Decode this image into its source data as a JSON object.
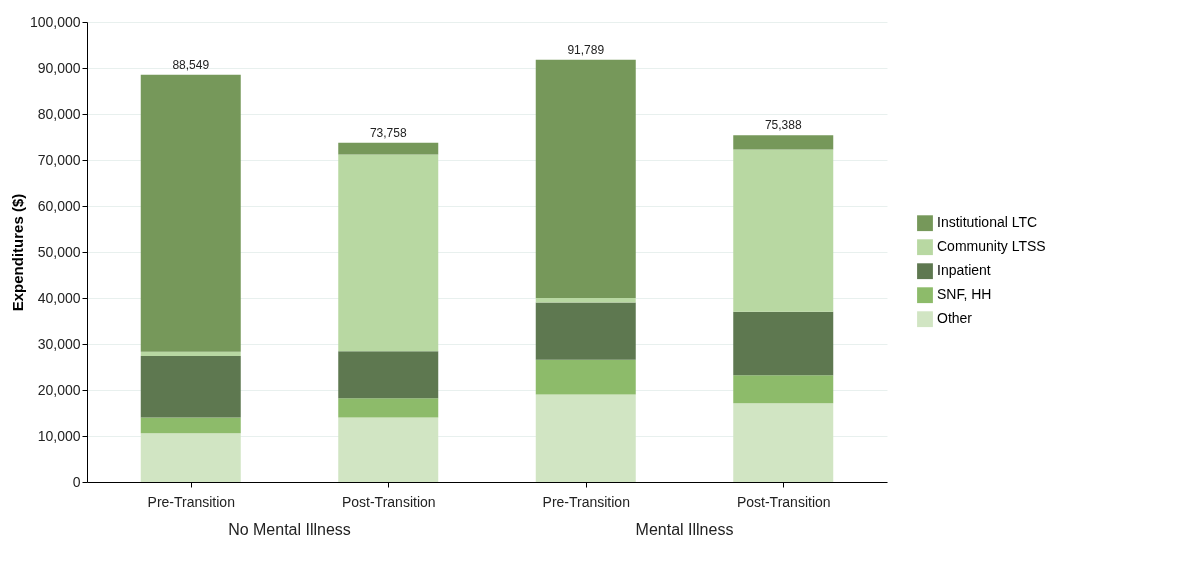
{
  "chart_data": {
    "type": "bar",
    "stacked": true,
    "ylabel": "Expenditures ($)",
    "categories": [
      "Pre-Transition",
      "Post-Transition",
      "Pre-Transition",
      "Post-Transition"
    ],
    "series": [
      {
        "name": "Other",
        "color": "#d1e5c3",
        "values": [
          10600,
          14000,
          19000,
          17100
        ]
      },
      {
        "name": "SNF, HH",
        "color": "#8dbb6a",
        "values": [
          3400,
          4200,
          7600,
          6100
        ]
      },
      {
        "name": "Inpatient",
        "color": "#5e7850",
        "values": [
          13400,
          10200,
          12400,
          13800
        ]
      },
      {
        "name": "Community LTSS",
        "color": "#b8d8a2",
        "values": [
          900,
          42800,
          1000,
          35300
        ]
      },
      {
        "name": "Institutional LTC",
        "color": "#76985a",
        "values": [
          60249,
          2558,
          51789,
          3088
        ]
      }
    ],
    "totals": [
      "88,549",
      "73,758",
      "91,789",
      "75,388"
    ],
    "annotations": [
      "No Mental Illness",
      "Mental Illness"
    ],
    "ylim": [
      0,
      100000
    ],
    "yticks": [
      0,
      {
        "value": 10000,
        "label": "10,000"
      },
      {
        "value": 20000,
        "label": "20,000"
      },
      {
        "value": 30000,
        "label": "30,000"
      },
      {
        "value": 40000,
        "label": "40,000"
      },
      {
        "value": 50000,
        "label": "50,000"
      },
      {
        "value": 60000,
        "label": "60,000"
      },
      {
        "value": 70000,
        "label": "70,000"
      },
      {
        "value": 80000,
        "label": "80,000"
      },
      {
        "value": 90000,
        "label": "90,000"
      },
      {
        "value": 100000,
        "label": "100,000"
      }
    ],
    "grid": "y",
    "legend": "right"
  }
}
